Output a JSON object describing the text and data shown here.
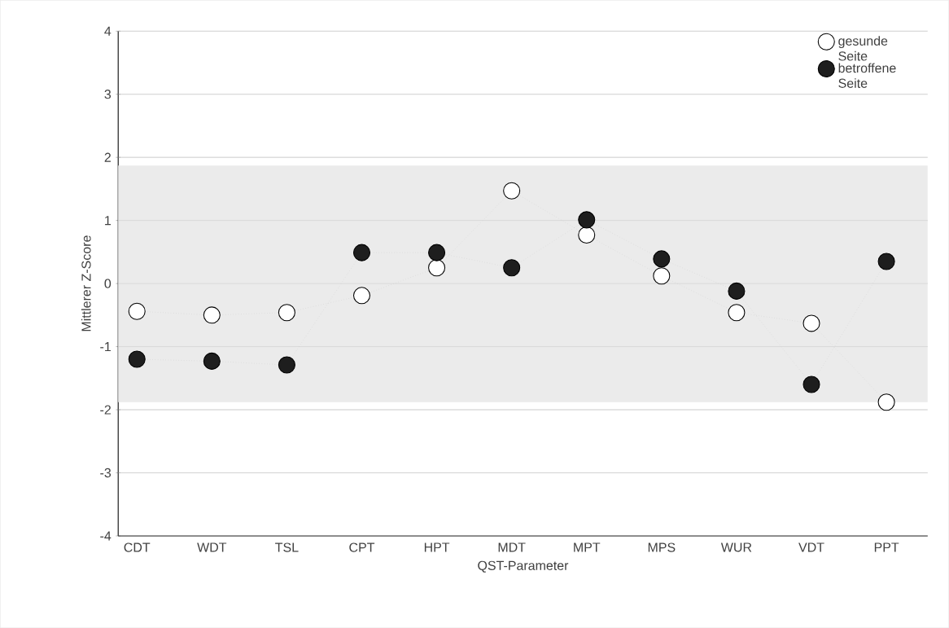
{
  "chart_data": {
    "type": "line",
    "xlabel": "QST-Parameter",
    "ylabel": "Mittlerer Z-Score",
    "categories": [
      "CDT",
      "WDT",
      "TSL",
      "CPT",
      "HPT",
      "MDT",
      "MPT",
      "MPS",
      "WUR",
      "VDT",
      "PPT"
    ],
    "series": [
      {
        "name": "gesunde Seite",
        "color": "#ffffff",
        "values": [
          -0.44,
          -0.5,
          -0.46,
          -0.19,
          0.25,
          1.47,
          0.77,
          0.12,
          -0.46,
          -0.63,
          -1.88
        ]
      },
      {
        "name": "betroffene Seite",
        "color": "#1e1e1e",
        "values": [
          -1.2,
          -1.23,
          -1.29,
          0.49,
          0.49,
          0.25,
          1.01,
          0.39,
          -0.12,
          -1.6,
          0.35
        ]
      }
    ],
    "ylim": [
      -4,
      4
    ],
    "yticks": [
      -4,
      -3,
      -2,
      -1,
      0,
      1,
      2,
      3,
      4
    ],
    "bands": [
      {
        "axis": "y",
        "from": -1.88,
        "to": 1.87,
        "color": "#ebebeb"
      }
    ],
    "grid": "y",
    "legend": "top right",
    "marker": "circle",
    "line_style": "dotted"
  }
}
